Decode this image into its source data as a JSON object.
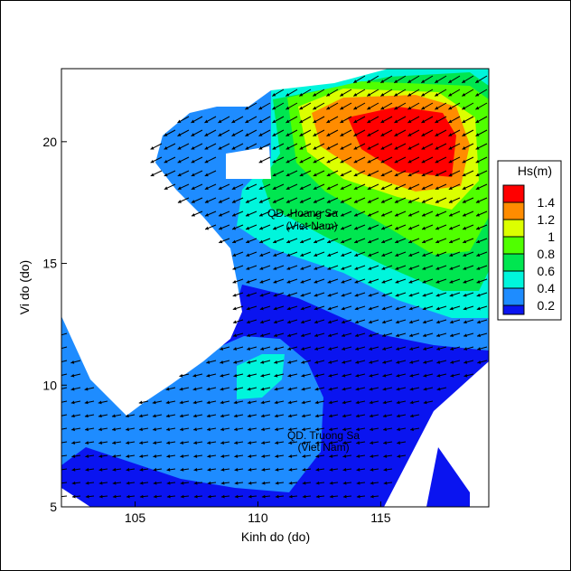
{
  "chart_data": {
    "type": "heatmap",
    "subtype": "filled-contour-map",
    "xlabel": "Kinh do (do)",
    "ylabel": "Vi do (do)",
    "xlim": [
      102,
      119.4
    ],
    "ylim": [
      5,
      23
    ],
    "xticks": [
      105,
      110,
      115
    ],
    "yticks": [
      5,
      10,
      15,
      20
    ],
    "grid": false,
    "colorbar": {
      "title": "Hs(m)",
      "placement": "right",
      "levels": [
        0.2,
        0.4,
        0.6,
        0.8,
        1,
        1.2,
        1.4
      ],
      "level_labels": [
        "0.2",
        "0.4",
        "0.6",
        "0.8",
        "1",
        "1.2",
        "1.4"
      ],
      "colors": [
        "#0a14f0",
        "#1e8cff",
        "#00f5dc",
        "#00e650",
        "#50ff00",
        "#dcff00",
        "#ff8c00",
        "#ff0000"
      ]
    },
    "max_region": {
      "value_range": ">1.4",
      "center_lon": 116,
      "center_lat": 19.8
    },
    "vector_field": "wave direction arrows, predominantly pointing west-southwest",
    "annotations": [
      {
        "line1": "QD. Hoang Sa",
        "line2": "(Viet Nam)"
      },
      {
        "line1": "QD. Truong Sa",
        "line2": "(Viet Nam)"
      }
    ],
    "land_color": "#ffffff"
  }
}
